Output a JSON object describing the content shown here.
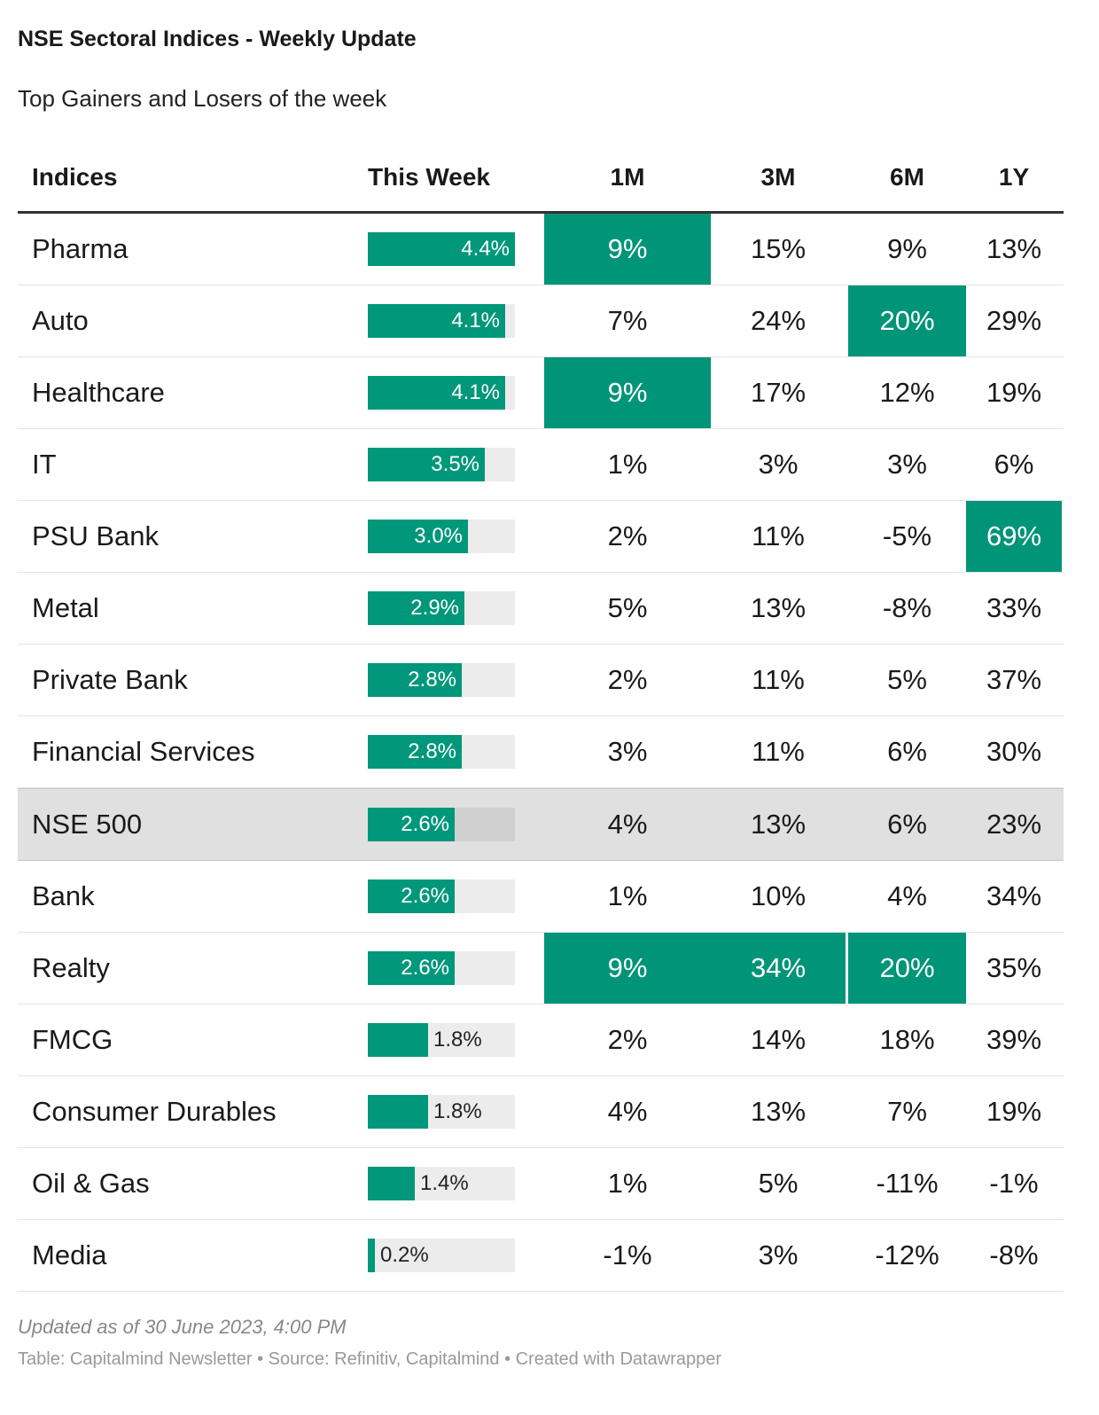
{
  "header": {
    "title": "NSE Sectoral Indices - Weekly Update",
    "subtitle": "Top Gainers and Losers of the week"
  },
  "columns": [
    "Indices",
    "This Week",
    "1M",
    "3M",
    "6M",
    "1Y"
  ],
  "colors": {
    "highlight": "#009478",
    "bar": "#00977a",
    "bar_track": "#ececec",
    "row_highlight": "#e0e0e0"
  },
  "chart_data": {
    "type": "table",
    "title": "NSE Sectoral Indices - Weekly Update",
    "subtitle": "Top Gainers and Losers of the week",
    "bar_column": "This Week",
    "bar_max": 4.4,
    "rows": [
      {
        "name": "Pharma",
        "week": 4.4,
        "week_label": "4.4%",
        "m1": "9%",
        "m3": "15%",
        "m6": "9%",
        "y1": "13%",
        "hl": [
          "m1"
        ]
      },
      {
        "name": "Auto",
        "week": 4.1,
        "week_label": "4.1%",
        "m1": "7%",
        "m3": "24%",
        "m6": "20%",
        "y1": "29%",
        "hl": [
          "m6"
        ]
      },
      {
        "name": "Healthcare",
        "week": 4.1,
        "week_label": "4.1%",
        "m1": "9%",
        "m3": "17%",
        "m6": "12%",
        "y1": "19%",
        "hl": [
          "m1"
        ]
      },
      {
        "name": "IT",
        "week": 3.5,
        "week_label": "3.5%",
        "m1": "1%",
        "m3": "3%",
        "m6": "3%",
        "y1": "6%",
        "hl": []
      },
      {
        "name": "PSU Bank",
        "week": 3.0,
        "week_label": "3.0%",
        "m1": "2%",
        "m3": "11%",
        "m6": "-5%",
        "y1": "69%",
        "hl": [
          "y1"
        ]
      },
      {
        "name": "Metal",
        "week": 2.9,
        "week_label": "2.9%",
        "m1": "5%",
        "m3": "13%",
        "m6": "-8%",
        "y1": "33%",
        "hl": []
      },
      {
        "name": "Private Bank",
        "week": 2.8,
        "week_label": "2.8%",
        "m1": "2%",
        "m3": "11%",
        "m6": "5%",
        "y1": "37%",
        "hl": []
      },
      {
        "name": "Financial Services",
        "week": 2.8,
        "week_label": "2.8%",
        "m1": "3%",
        "m3": "11%",
        "m6": "6%",
        "y1": "30%",
        "hl": []
      },
      {
        "name": "NSE 500",
        "week": 2.6,
        "week_label": "2.6%",
        "m1": "4%",
        "m3": "13%",
        "m6": "6%",
        "y1": "23%",
        "hl": [],
        "row_highlight": true
      },
      {
        "name": "Bank",
        "week": 2.6,
        "week_label": "2.6%",
        "m1": "1%",
        "m3": "10%",
        "m6": "4%",
        "y1": "34%",
        "hl": []
      },
      {
        "name": "Realty",
        "week": 2.6,
        "week_label": "2.6%",
        "m1": "9%",
        "m3": "34%",
        "m6": "20%",
        "y1": "35%",
        "hl": [
          "m1",
          "m3",
          "m6"
        ]
      },
      {
        "name": "FMCG",
        "week": 1.8,
        "week_label": "1.8%",
        "m1": "2%",
        "m3": "14%",
        "m6": "18%",
        "y1": "39%",
        "hl": []
      },
      {
        "name": "Consumer Durables",
        "week": 1.8,
        "week_label": "1.8%",
        "m1": "4%",
        "m3": "13%",
        "m6": "7%",
        "y1": "19%",
        "hl": []
      },
      {
        "name": "Oil & Gas",
        "week": 1.4,
        "week_label": "1.4%",
        "m1": "1%",
        "m3": "5%",
        "m6": "-11%",
        "y1": "-1%",
        "hl": []
      },
      {
        "name": "Media",
        "week": 0.2,
        "week_label": "0.2%",
        "m1": "-1%",
        "m3": "3%",
        "m6": "-12%",
        "y1": "-8%",
        "hl": []
      }
    ]
  },
  "footer": {
    "notes": "Updated as of 30 June 2023, 4:00 PM",
    "source": "Table: Capitalmind Newsletter • Source: Refinitiv, Capitalmind • Created with Datawrapper"
  }
}
